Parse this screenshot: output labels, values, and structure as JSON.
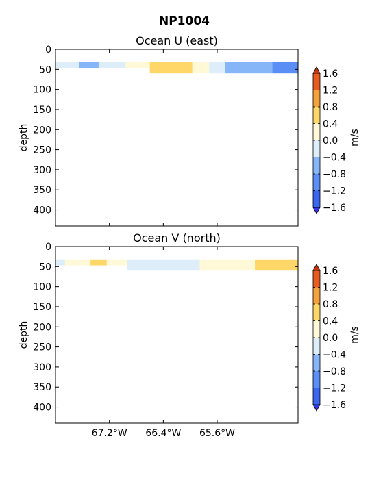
{
  "figure_title": "NP1004",
  "colorbar": {
    "label": "m/s",
    "ticks": [
      "1.6",
      "1.2",
      "0.8",
      "0.4",
      "0.0",
      "−0.4",
      "−0.8",
      "−1.2",
      "−1.6"
    ],
    "bands": [
      {
        "from": -1.6,
        "to": -1.2,
        "color": "#3a66f0"
      },
      {
        "from": -1.2,
        "to": -0.8,
        "color": "#5b8ff5"
      },
      {
        "from": -0.8,
        "to": -0.4,
        "color": "#86b6f7"
      },
      {
        "from": -0.4,
        "to": 0.0,
        "color": "#ddeefa"
      },
      {
        "from": 0.0,
        "to": 0.4,
        "color": "#fff9d8"
      },
      {
        "from": 0.4,
        "to": 0.8,
        "color": "#ffd769"
      },
      {
        "from": 0.8,
        "to": 1.2,
        "color": "#f6a23c"
      },
      {
        "from": 1.2,
        "to": 1.6,
        "color": "#e85d1f"
      }
    ],
    "under_color": "#3333ee",
    "over_color": "#cc3311"
  },
  "chart_data": [
    {
      "type": "heatmap",
      "title": "Ocean U (east)",
      "ylabel": "depth",
      "xlabel": "",
      "ylim": [
        0,
        440
      ],
      "y_inverted": true,
      "yticks": [
        0,
        50,
        100,
        150,
        200,
        250,
        300,
        350,
        400
      ],
      "show_xticklabels": false,
      "xlim_deg_w": [
        68.0,
        64.4
      ],
      "xticks_deg_w": [
        67.2,
        66.4,
        65.6
      ],
      "xtick_labels": [
        "67.2°W",
        "66.4°W",
        "65.6°W"
      ],
      "depth_band": [
        32,
        60
      ],
      "segments": [
        {
          "from_w": 68.0,
          "to_w": 67.65,
          "value": -0.2,
          "depth_to": 47
        },
        {
          "from_w": 67.65,
          "to_w": 67.36,
          "value": -0.6,
          "depth_to": 47
        },
        {
          "from_w": 67.36,
          "to_w": 66.96,
          "value": -0.2,
          "depth_to": 47
        },
        {
          "from_w": 66.96,
          "to_w": 66.6,
          "value": 0.2,
          "depth_to": 47
        },
        {
          "from_w": 66.6,
          "to_w": 65.97,
          "value": 0.6,
          "depth_to": 60
        },
        {
          "from_w": 65.97,
          "to_w": 65.72,
          "value": 0.2,
          "depth_to": 60
        },
        {
          "from_w": 65.72,
          "to_w": 65.48,
          "value": -0.2,
          "depth_to": 60
        },
        {
          "from_w": 65.48,
          "to_w": 64.78,
          "value": -0.6,
          "depth_to": 60
        },
        {
          "from_w": 64.78,
          "to_w": 64.4,
          "value": -1.0,
          "depth_to": 60
        }
      ]
    },
    {
      "type": "heatmap",
      "title": "Ocean V (north)",
      "ylabel": "depth",
      "xlabel": "",
      "ylim": [
        0,
        440
      ],
      "y_inverted": true,
      "yticks": [
        0,
        50,
        100,
        150,
        200,
        250,
        300,
        350,
        400
      ],
      "show_xticklabels": true,
      "xlim_deg_w": [
        68.0,
        64.4
      ],
      "xticks_deg_w": [
        67.2,
        66.4,
        65.6
      ],
      "xtick_labels": [
        "67.2°W",
        "66.4°W",
        "65.6°W"
      ],
      "depth_band": [
        32,
        60
      ],
      "segments": [
        {
          "from_w": 68.0,
          "to_w": 67.86,
          "value": -0.2,
          "depth_to": 47
        },
        {
          "from_w": 67.86,
          "to_w": 67.48,
          "value": 0.2,
          "depth_to": 47
        },
        {
          "from_w": 67.48,
          "to_w": 67.24,
          "value": 0.6,
          "depth_to": 47
        },
        {
          "from_w": 67.24,
          "to_w": 66.94,
          "value": 0.2,
          "depth_to": 47
        },
        {
          "from_w": 66.94,
          "to_w": 65.86,
          "value": -0.2,
          "depth_to": 60
        },
        {
          "from_w": 65.86,
          "to_w": 65.04,
          "value": 0.2,
          "depth_to": 60
        },
        {
          "from_w": 65.04,
          "to_w": 64.4,
          "value": 0.6,
          "depth_to": 60
        }
      ]
    }
  ]
}
